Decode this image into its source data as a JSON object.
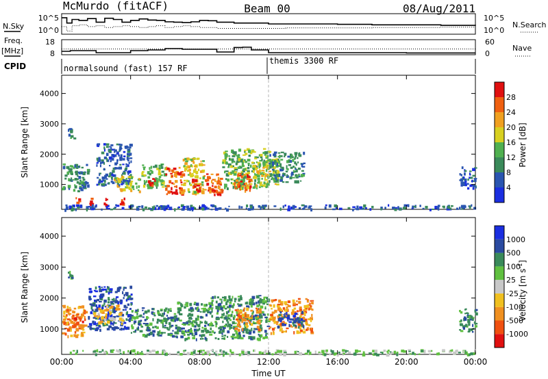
{
  "header": {
    "station": "McMurdo (fitACF)",
    "beam": "Beam 00",
    "date": "08/Aug/2011"
  },
  "panel_labels": {
    "nsky": "N.Sky",
    "nsearch": "N.Search",
    "nsky_ticks": [
      "10^5",
      "10^0"
    ],
    "nsearch_ticks": [
      "10^5",
      "10^0"
    ],
    "freq": "Freq.",
    "freq_unit": "[MHz]",
    "freq_ticks": [
      "18",
      "8"
    ],
    "nave": "Nave",
    "nave_ticks": [
      "60",
      "0"
    ],
    "cpid": "CPID",
    "cpid_mode_1": "normalsound (fast) 157 RF",
    "cpid_mode_2": "themis 3300 RF"
  },
  "colors": {
    "power": [
      "#1a2ee0",
      "#2a55b0",
      "#3a8a5a",
      "#50b050",
      "#d8d020",
      "#f0a020",
      "#f06010",
      "#e01010"
    ],
    "velocity": [
      "#e01010",
      "#f05010",
      "#f09020",
      "#f0c020",
      "#c8c8c8",
      "#60c040",
      "#3a8a5a",
      "#2a4aa0",
      "#1a2ee0"
    ],
    "dashed_line": "#b4b4b4"
  },
  "chart_data": [
    {
      "type": "line",
      "name": "nsky-nsearch",
      "ylabel_left": "N.Sky",
      "ylabel_right": "N.Search",
      "x_hours": [
        0,
        0.3,
        0.6,
        1,
        1.5,
        2,
        2.5,
        3,
        3.5,
        4,
        4.5,
        5,
        5.5,
        6,
        6.5,
        7,
        7.5,
        8,
        8.5,
        9,
        10,
        11,
        12,
        13,
        14,
        16,
        18,
        20,
        22,
        24
      ],
      "nsky_norm": [
        0.85,
        0.55,
        0.75,
        0.7,
        0.8,
        0.6,
        0.82,
        0.75,
        0.6,
        0.7,
        0.78,
        0.72,
        0.7,
        0.62,
        0.6,
        0.58,
        0.62,
        0.7,
        0.68,
        0.6,
        0.55,
        0.55,
        0.5,
        0.5,
        0.5,
        0.48,
        0.45,
        0.45,
        0.42,
        0.4
      ],
      "nsearch_norm": [
        0.35,
        0.1,
        0.4,
        0.45,
        0.35,
        0.4,
        0.3,
        0.35,
        0.4,
        0.35,
        0.3,
        0.35,
        0.4,
        0.3,
        0.35,
        0.4,
        0.35,
        0.3,
        0.3,
        0.25,
        0.25,
        0.25,
        0.25,
        0.28,
        0.28,
        0.28,
        0.3,
        0.3,
        0.32,
        0.3
      ]
    },
    {
      "type": "line",
      "name": "freq-nave",
      "ylabel_left": "Freq. [MHz]",
      "ylabel_right": "Nave",
      "x_hours": [
        0,
        0.5,
        2,
        4,
        5,
        6,
        7,
        9,
        10,
        10.5,
        11,
        12,
        13,
        16,
        20,
        24
      ],
      "freq_mhz": [
        10,
        10.5,
        9,
        10.5,
        11,
        12,
        11.5,
        9.5,
        12.8,
        13,
        11,
        9,
        9,
        9,
        8.8,
        8.8
      ],
      "nave": [
        22,
        22,
        22,
        22,
        22,
        22,
        22,
        22,
        22,
        22,
        22,
        22,
        22,
        22,
        22,
        22
      ],
      "freq_range": [
        8,
        18
      ],
      "nave_range": [
        0,
        60
      ]
    },
    {
      "type": "heatmap",
      "name": "power",
      "title": "",
      "xlabel": "",
      "ylabel": "Slant Range [km]",
      "xlim_hours": [
        0,
        24
      ],
      "ylim_km": [
        180,
        4600
      ],
      "x_ticks": [
        "00:00",
        "04:00",
        "08:00",
        "12:00",
        "16:00",
        "20:00",
        "00:00"
      ],
      "y_ticks": [
        1000,
        2000,
        3000,
        4000
      ],
      "colorbar_label": "Power [dB]",
      "colorbar_ticks": [
        "4",
        "8",
        "12",
        "16",
        "20",
        "24",
        "28"
      ],
      "marker_hour": 12,
      "echo_regions": [
        {
          "t0": 0.0,
          "t1": 1.5,
          "r0": 800,
          "r1": 1700,
          "level": 2
        },
        {
          "t0": 0.3,
          "t1": 0.7,
          "r0": 2500,
          "r1": 2900,
          "level": 2
        },
        {
          "t0": 0.8,
          "t1": 1.0,
          "r0": 300,
          "r1": 600,
          "level": 7
        },
        {
          "t0": 1.6,
          "t1": 1.8,
          "r0": 300,
          "r1": 600,
          "level": 7
        },
        {
          "t0": 2.4,
          "t1": 2.6,
          "r0": 300,
          "r1": 600,
          "level": 7
        },
        {
          "t0": 3.3,
          "t1": 3.6,
          "r0": 300,
          "r1": 600,
          "level": 7
        },
        {
          "t0": 2.0,
          "t1": 4.0,
          "r0": 1000,
          "r1": 2400,
          "level": 1
        },
        {
          "t0": 3.0,
          "t1": 4.5,
          "r0": 800,
          "r1": 1300,
          "level": 4
        },
        {
          "t0": 4.6,
          "t1": 6.0,
          "r0": 900,
          "r1": 1700,
          "level": 3
        },
        {
          "t0": 5.0,
          "t1": 5.4,
          "r0": 1000,
          "r1": 1300,
          "level": 7
        },
        {
          "t0": 6.0,
          "t1": 7.0,
          "r0": 700,
          "r1": 1600,
          "level": 6
        },
        {
          "t0": 7.0,
          "t1": 8.2,
          "r0": 700,
          "r1": 1900,
          "level": 4
        },
        {
          "t0": 7.5,
          "t1": 8.0,
          "r0": 800,
          "r1": 1200,
          "level": 7
        },
        {
          "t0": 8.2,
          "t1": 9.2,
          "r0": 700,
          "r1": 1400,
          "level": 6
        },
        {
          "t0": 8.6,
          "t1": 9.3,
          "r0": 650,
          "r1": 1000,
          "level": 7
        },
        {
          "t0": 9.3,
          "t1": 12.0,
          "r0": 900,
          "r1": 2200,
          "level": 3
        },
        {
          "t0": 10.0,
          "t1": 11.0,
          "r0": 800,
          "r1": 1400,
          "level": 6
        },
        {
          "t0": 11.0,
          "t1": 12.5,
          "r0": 1000,
          "r1": 1900,
          "level": 4
        },
        {
          "t0": 12.0,
          "t1": 14.0,
          "r0": 1100,
          "r1": 2100,
          "level": 2
        },
        {
          "t0": 0.0,
          "t1": 24.0,
          "r0": 200,
          "r1": 350,
          "level": 1
        },
        {
          "t0": 23.0,
          "t1": 24.0,
          "r0": 900,
          "r1": 1600,
          "level": 1
        }
      ]
    },
    {
      "type": "heatmap",
      "name": "velocity",
      "title": "",
      "xlabel": "Time UT",
      "ylabel": "Slant Range [km]",
      "xlim_hours": [
        0,
        24
      ],
      "ylim_km": [
        180,
        4600
      ],
      "x_ticks": [
        "00:00",
        "04:00",
        "08:00",
        "12:00",
        "16:00",
        "20:00",
        "00:00"
      ],
      "y_ticks": [
        1000,
        2000,
        3000,
        4000
      ],
      "colorbar_label": "Velocity [m s",
      "colorbar_label_sup": "-1",
      "colorbar_label_end": "]",
      "colorbar_ticks": [
        "1000",
        "500",
        "100",
        "25",
        "-25",
        "-100",
        "-500",
        "-1000"
      ],
      "marker_hour": 12,
      "echo_regions": [
        {
          "t0": 0.0,
          "t1": 1.4,
          "r0": 800,
          "r1": 1800,
          "level": 2
        },
        {
          "t0": 0.3,
          "t1": 0.7,
          "r0": 2500,
          "r1": 2900,
          "level": 6
        },
        {
          "t0": 0.6,
          "t1": 1.2,
          "r0": 1000,
          "r1": 1500,
          "level": 1
        },
        {
          "t0": 1.5,
          "t1": 4.0,
          "r0": 1000,
          "r1": 2400,
          "level": 7
        },
        {
          "t0": 1.8,
          "t1": 3.5,
          "r0": 1200,
          "r1": 1800,
          "level": 3
        },
        {
          "t0": 4.0,
          "t1": 6.5,
          "r0": 800,
          "r1": 1700,
          "level": 6
        },
        {
          "t0": 6.5,
          "t1": 8.5,
          "r0": 700,
          "r1": 1900,
          "level": 6
        },
        {
          "t0": 8.5,
          "t1": 12.0,
          "r0": 700,
          "r1": 2100,
          "level": 6
        },
        {
          "t0": 10.0,
          "t1": 11.5,
          "r0": 1000,
          "r1": 1700,
          "level": 2
        },
        {
          "t0": 12.0,
          "t1": 14.5,
          "r0": 900,
          "r1": 2000,
          "level": 2
        },
        {
          "t0": 12.5,
          "t1": 14.0,
          "r0": 1100,
          "r1": 1600,
          "level": 7
        },
        {
          "t0": 0.0,
          "t1": 24.0,
          "r0": 200,
          "r1": 350,
          "level": 5
        },
        {
          "t0": 23.0,
          "t1": 24.0,
          "r0": 900,
          "r1": 1700,
          "level": 6
        }
      ]
    }
  ]
}
